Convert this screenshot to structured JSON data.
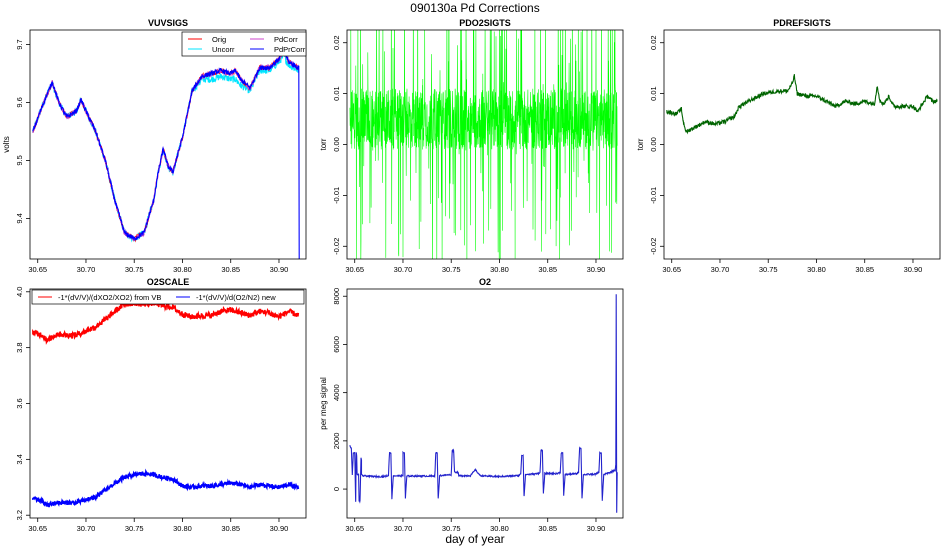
{
  "figure": {
    "title": "090130a   Pd Corrections",
    "xlabel": "day of year"
  },
  "colors": {
    "orig": "#ff0000",
    "uncorr": "#00e5ff",
    "pdcorr": "#cc44cc",
    "pdprcorr": "#0000ff",
    "pdo2": "#00ff00",
    "pdref": "#006400",
    "o2scale_vb": "#ff0000",
    "o2scale_new": "#0000ff",
    "o2": "#2222cc"
  },
  "chart_data": [
    {
      "id": "vuvsigs",
      "type": "line",
      "title": "VUVSIGS",
      "xlabel": "",
      "ylabel": "volts",
      "xlim": [
        30.642,
        30.928
      ],
      "ylim": [
        9.33,
        9.725
      ],
      "xticks": [
        30.65,
        30.7,
        30.75,
        30.8,
        30.85,
        30.9
      ],
      "xtick_labels": [
        "30.65",
        "30.70",
        "30.75",
        "30.80",
        "30.85",
        "30.90"
      ],
      "yticks": [
        9.4,
        9.5,
        9.6,
        9.7
      ],
      "ytick_labels": [
        "9.4",
        "9.5",
        "9.6",
        "9.7"
      ],
      "legend": {
        "position": "top-right",
        "columns": 2,
        "entries": [
          "Orig",
          "Uncorr",
          "PdCorr",
          "PdPrCorr"
        ]
      },
      "series": [
        {
          "name": "Uncorr",
          "color_key": "uncorr",
          "noise": 0.006,
          "x": [
            30.645,
            30.655,
            30.665,
            30.672,
            30.68,
            30.69,
            30.695,
            30.7,
            30.71,
            30.72,
            30.73,
            30.74,
            30.75,
            30.76,
            30.77,
            30.775,
            30.78,
            30.785,
            30.79,
            30.8,
            30.81,
            30.82,
            30.83,
            30.84,
            30.85,
            30.855,
            30.86,
            30.87,
            30.88,
            30.89,
            30.9,
            30.905,
            30.91,
            30.915,
            30.92
          ],
          "y": [
            9.55,
            9.595,
            9.635,
            9.6,
            9.575,
            9.585,
            9.605,
            9.585,
            9.55,
            9.5,
            9.43,
            9.375,
            9.365,
            9.375,
            9.43,
            9.48,
            9.52,
            9.49,
            9.48,
            9.54,
            9.62,
            9.64,
            9.64,
            9.645,
            9.64,
            9.64,
            9.63,
            9.62,
            9.655,
            9.655,
            9.67,
            9.68,
            9.665,
            9.66,
            9.655
          ]
        },
        {
          "name": "Orig",
          "color_key": "orig",
          "noise": 0.004,
          "x": [
            30.645,
            30.655,
            30.665,
            30.672,
            30.68,
            30.69,
            30.695,
            30.7,
            30.71,
            30.72,
            30.73,
            30.74,
            30.75,
            30.76,
            30.77,
            30.775,
            30.78,
            30.785,
            30.79,
            30.8,
            30.81,
            30.82,
            30.83,
            30.84,
            30.85,
            30.855,
            30.86,
            30.87,
            30.88,
            30.89,
            30.9,
            30.905,
            30.91,
            30.915,
            30.92
          ],
          "y": [
            9.55,
            9.595,
            9.635,
            9.6,
            9.575,
            9.585,
            9.605,
            9.585,
            9.55,
            9.5,
            9.43,
            9.375,
            9.365,
            9.375,
            9.43,
            9.48,
            9.52,
            9.49,
            9.48,
            9.54,
            9.62,
            9.645,
            9.65,
            9.655,
            9.65,
            9.655,
            9.64,
            9.625,
            9.66,
            9.66,
            9.675,
            9.69,
            9.67,
            9.665,
            9.66
          ]
        },
        {
          "name": "PdCorr",
          "color_key": "pdcorr",
          "noise": 0.004,
          "x": [
            30.645,
            30.655,
            30.665,
            30.672,
            30.68,
            30.69,
            30.695,
            30.7,
            30.71,
            30.72,
            30.73,
            30.74,
            30.75,
            30.76,
            30.77,
            30.775,
            30.78,
            30.785,
            30.79,
            30.8,
            30.81,
            30.82,
            30.83,
            30.84,
            30.85,
            30.855,
            30.86,
            30.87,
            30.88,
            30.89,
            30.9,
            30.905,
            30.91,
            30.915,
            30.92
          ],
          "y": [
            9.55,
            9.595,
            9.635,
            9.6,
            9.575,
            9.585,
            9.605,
            9.585,
            9.55,
            9.5,
            9.43,
            9.375,
            9.365,
            9.375,
            9.43,
            9.48,
            9.52,
            9.49,
            9.48,
            9.54,
            9.62,
            9.645,
            9.65,
            9.655,
            9.65,
            9.655,
            9.64,
            9.625,
            9.66,
            9.66,
            9.675,
            9.69,
            9.67,
            9.665,
            9.66
          ]
        },
        {
          "name": "PdPrCorr",
          "color_key": "pdprcorr",
          "noise": 0.004,
          "x": [
            30.645,
            30.655,
            30.665,
            30.672,
            30.68,
            30.69,
            30.695,
            30.7,
            30.71,
            30.72,
            30.73,
            30.74,
            30.75,
            30.76,
            30.77,
            30.775,
            30.78,
            30.785,
            30.79,
            30.8,
            30.81,
            30.82,
            30.83,
            30.84,
            30.85,
            30.855,
            30.86,
            30.87,
            30.88,
            30.89,
            30.9,
            30.905,
            30.91,
            30.915,
            30.92,
            30.9205,
            30.921
          ],
          "y": [
            9.55,
            9.595,
            9.635,
            9.6,
            9.575,
            9.585,
            9.605,
            9.585,
            9.55,
            9.5,
            9.43,
            9.375,
            9.365,
            9.375,
            9.43,
            9.48,
            9.52,
            9.49,
            9.48,
            9.54,
            9.62,
            9.645,
            9.65,
            9.655,
            9.65,
            9.655,
            9.64,
            9.625,
            9.66,
            9.66,
            9.675,
            9.69,
            9.67,
            9.665,
            9.66,
            9.66,
            9.33
          ]
        }
      ]
    },
    {
      "id": "pdo2sigts",
      "type": "line",
      "title": "PDO2SIGTS",
      "xlabel": "",
      "ylabel": "torr",
      "xlim": [
        30.642,
        30.928
      ],
      "ylim": [
        -0.0225,
        0.0225
      ],
      "xticks": [
        30.65,
        30.7,
        30.75,
        30.8,
        30.85,
        30.9
      ],
      "xtick_labels": [
        "30.65",
        "30.70",
        "30.75",
        "30.80",
        "30.85",
        "30.90"
      ],
      "yticks": [
        -0.02,
        -0.01,
        0.0,
        0.01,
        0.02
      ],
      "ytick_labels": [
        "-0.02",
        "-0.01",
        "0.00",
        "0.01",
        "0.02"
      ],
      "series": [
        {
          "name": "PDO2SIG",
          "color_key": "pdo2",
          "x_start": 30.645,
          "x_end": 30.922,
          "center": 0.005,
          "band": 0.006,
          "spike_max": 0.03,
          "spike_rate": 0.18
        }
      ]
    },
    {
      "id": "pdrefsigts",
      "type": "line",
      "title": "PDREFSIGTS",
      "xlabel": "",
      "ylabel": "torr",
      "xlim": [
        30.642,
        30.928
      ],
      "ylim": [
        -0.0225,
        0.0225
      ],
      "xticks": [
        30.65,
        30.7,
        30.75,
        30.8,
        30.85,
        30.9
      ],
      "xtick_labels": [
        "30.65",
        "30.70",
        "30.75",
        "30.80",
        "30.85",
        "30.90"
      ],
      "yticks": [
        -0.02,
        -0.01,
        0.0,
        0.01,
        0.02
      ],
      "ytick_labels": [
        "-0.02",
        "-0.01",
        "0.00",
        "0.01",
        "0.02"
      ],
      "series": [
        {
          "name": "PDREFSIG",
          "color_key": "pdref",
          "noise": 0.0004,
          "x": [
            30.645,
            30.655,
            30.66,
            30.662,
            30.665,
            30.675,
            30.685,
            30.695,
            30.705,
            30.715,
            30.72,
            30.73,
            30.745,
            30.76,
            30.77,
            30.775,
            30.777,
            30.78,
            30.79,
            30.8,
            30.81,
            30.82,
            30.83,
            30.84,
            30.85,
            30.86,
            30.863,
            30.866,
            30.87,
            30.875,
            30.88,
            30.89,
            30.9,
            30.905,
            30.91,
            30.915,
            30.92,
            30.925
          ],
          "y": [
            0.0065,
            0.006,
            0.007,
            0.0045,
            0.0025,
            0.0035,
            0.0045,
            0.004,
            0.0045,
            0.0055,
            0.0075,
            0.0085,
            0.01,
            0.0105,
            0.0105,
            0.012,
            0.0135,
            0.01,
            0.0095,
            0.0095,
            0.0085,
            0.0075,
            0.0085,
            0.008,
            0.0085,
            0.008,
            0.0115,
            0.0085,
            0.008,
            0.0095,
            0.0075,
            0.0075,
            0.0075,
            0.0065,
            0.008,
            0.0095,
            0.0085,
            0.0085
          ]
        }
      ]
    },
    {
      "id": "o2scale",
      "type": "line",
      "title": "O2SCALE",
      "xlabel": "",
      "ylabel": "",
      "xlim": [
        30.642,
        30.928
      ],
      "ylim": [
        3.19,
        4.01
      ],
      "xticks": [
        30.65,
        30.7,
        30.75,
        30.8,
        30.85,
        30.9
      ],
      "xtick_labels": [
        "30.65",
        "30.70",
        "30.75",
        "30.80",
        "30.85",
        "30.90"
      ],
      "yticks": [
        3.2,
        3.4,
        3.6,
        3.8,
        4.0
      ],
      "ytick_labels": [
        "3.2",
        "3.4",
        "3.6",
        "3.8",
        "4.0"
      ],
      "legend": {
        "position": "top",
        "columns": 2,
        "entries": [
          "-1*(dV/V)/(dXO2/XO2) from VB",
          "-1*(dV/V)/d(O2/N2) new"
        ]
      },
      "series": [
        {
          "name": "-1*(dV/V)/(dXO2/XO2) from VB",
          "color_key": "o2scale_vb",
          "noise": 0.01,
          "x": [
            30.645,
            30.655,
            30.66,
            30.67,
            30.68,
            30.69,
            30.7,
            30.71,
            30.72,
            30.73,
            30.74,
            30.75,
            30.76,
            30.77,
            30.78,
            30.79,
            30.8,
            30.81,
            30.82,
            30.83,
            30.84,
            30.85,
            30.86,
            30.87,
            30.88,
            30.89,
            30.9,
            30.91,
            30.92
          ],
          "y": [
            3.855,
            3.845,
            3.825,
            3.85,
            3.845,
            3.845,
            3.86,
            3.875,
            3.9,
            3.93,
            3.955,
            3.96,
            3.955,
            3.96,
            3.95,
            3.945,
            3.92,
            3.91,
            3.915,
            3.915,
            3.93,
            3.935,
            3.925,
            3.915,
            3.93,
            3.925,
            3.91,
            3.93,
            3.915
          ]
        },
        {
          "name": "-1*(dV/V)/d(O2/N2) new",
          "color_key": "o2scale_new",
          "noise": 0.008,
          "x": [
            30.645,
            30.655,
            30.66,
            30.67,
            30.68,
            30.69,
            30.7,
            30.71,
            30.72,
            30.73,
            30.74,
            30.75,
            30.76,
            30.77,
            30.78,
            30.79,
            30.8,
            30.81,
            30.82,
            30.83,
            30.84,
            30.85,
            30.86,
            30.87,
            30.88,
            30.89,
            30.9,
            30.91,
            30.92
          ],
          "y": [
            3.26,
            3.25,
            3.235,
            3.245,
            3.245,
            3.245,
            3.255,
            3.265,
            3.29,
            3.315,
            3.335,
            3.345,
            3.35,
            3.345,
            3.335,
            3.33,
            3.305,
            3.3,
            3.305,
            3.305,
            3.31,
            3.315,
            3.31,
            3.3,
            3.31,
            3.305,
            3.3,
            3.31,
            3.3
          ]
        }
      ]
    },
    {
      "id": "o2",
      "type": "line",
      "title": "O2",
      "xlabel": "",
      "ylabel": "per meg signal",
      "xlim": [
        30.642,
        30.928
      ],
      "ylim": [
        -1200,
        8300
      ],
      "xticks": [
        30.65,
        30.7,
        30.75,
        30.8,
        30.85,
        30.9
      ],
      "xtick_labels": [
        "30.65",
        "30.70",
        "30.75",
        "30.80",
        "30.85",
        "30.90"
      ],
      "yticks": [
        0,
        2000,
        4000,
        6000,
        8000
      ],
      "ytick_labels": [
        "0",
        "2000",
        "4000",
        "6000",
        "8000"
      ],
      "series": [
        {
          "name": "O2",
          "color_key": "o2",
          "noise": 30,
          "x": [
            30.645,
            30.6465,
            30.6475,
            30.6485,
            30.65,
            30.651,
            30.6515,
            30.652,
            30.6525,
            30.654,
            30.6545,
            30.6555,
            30.6565,
            30.657,
            30.657,
            30.658,
            30.66,
            30.67,
            30.68,
            30.685,
            30.686,
            30.6875,
            30.6885,
            30.69,
            30.7,
            30.7,
            30.7015,
            30.7025,
            30.704,
            30.72,
            30.73,
            30.733,
            30.734,
            30.7355,
            30.7365,
            30.738,
            30.75,
            30.751,
            30.7525,
            30.7535,
            30.757,
            30.758,
            30.77,
            30.775,
            30.78,
            30.79,
            30.8,
            30.81,
            30.82,
            30.822,
            30.823,
            30.8245,
            30.8255,
            30.827,
            30.84,
            30.842,
            30.843,
            30.8445,
            30.8455,
            30.847,
            30.86,
            30.863,
            30.864,
            30.8655,
            30.8665,
            30.868,
            30.88,
            30.882,
            30.883,
            30.8845,
            30.8855,
            30.887,
            30.9,
            30.903,
            30.904,
            30.9055,
            30.9065,
            30.908,
            30.915,
            30.92,
            30.9205,
            30.921,
            30.9215,
            30.922
          ],
          "y": [
            1800,
            1700,
            600,
            1500,
            1500,
            -500,
            1500,
            1400,
            600,
            600,
            -500,
            -500,
            1300,
            1200,
            600,
            550,
            550,
            520,
            520,
            560,
            1500,
            1500,
            -400,
            550,
            550,
            1500,
            1500,
            -400,
            540,
            540,
            540,
            560,
            1500,
            1500,
            -400,
            560,
            600,
            1600,
            1600,
            700,
            700,
            550,
            560,
            800,
            560,
            530,
            520,
            540,
            560,
            620,
            1400,
            1400,
            -300,
            600,
            640,
            700,
            1600,
            1600,
            -200,
            650,
            640,
            700,
            1500,
            1500,
            -300,
            600,
            640,
            700,
            1700,
            1700,
            -400,
            600,
            620,
            700,
            1500,
            1500,
            -500,
            600,
            700,
            800,
            1000,
            8100,
            -1000,
            700
          ]
        }
      ]
    }
  ]
}
